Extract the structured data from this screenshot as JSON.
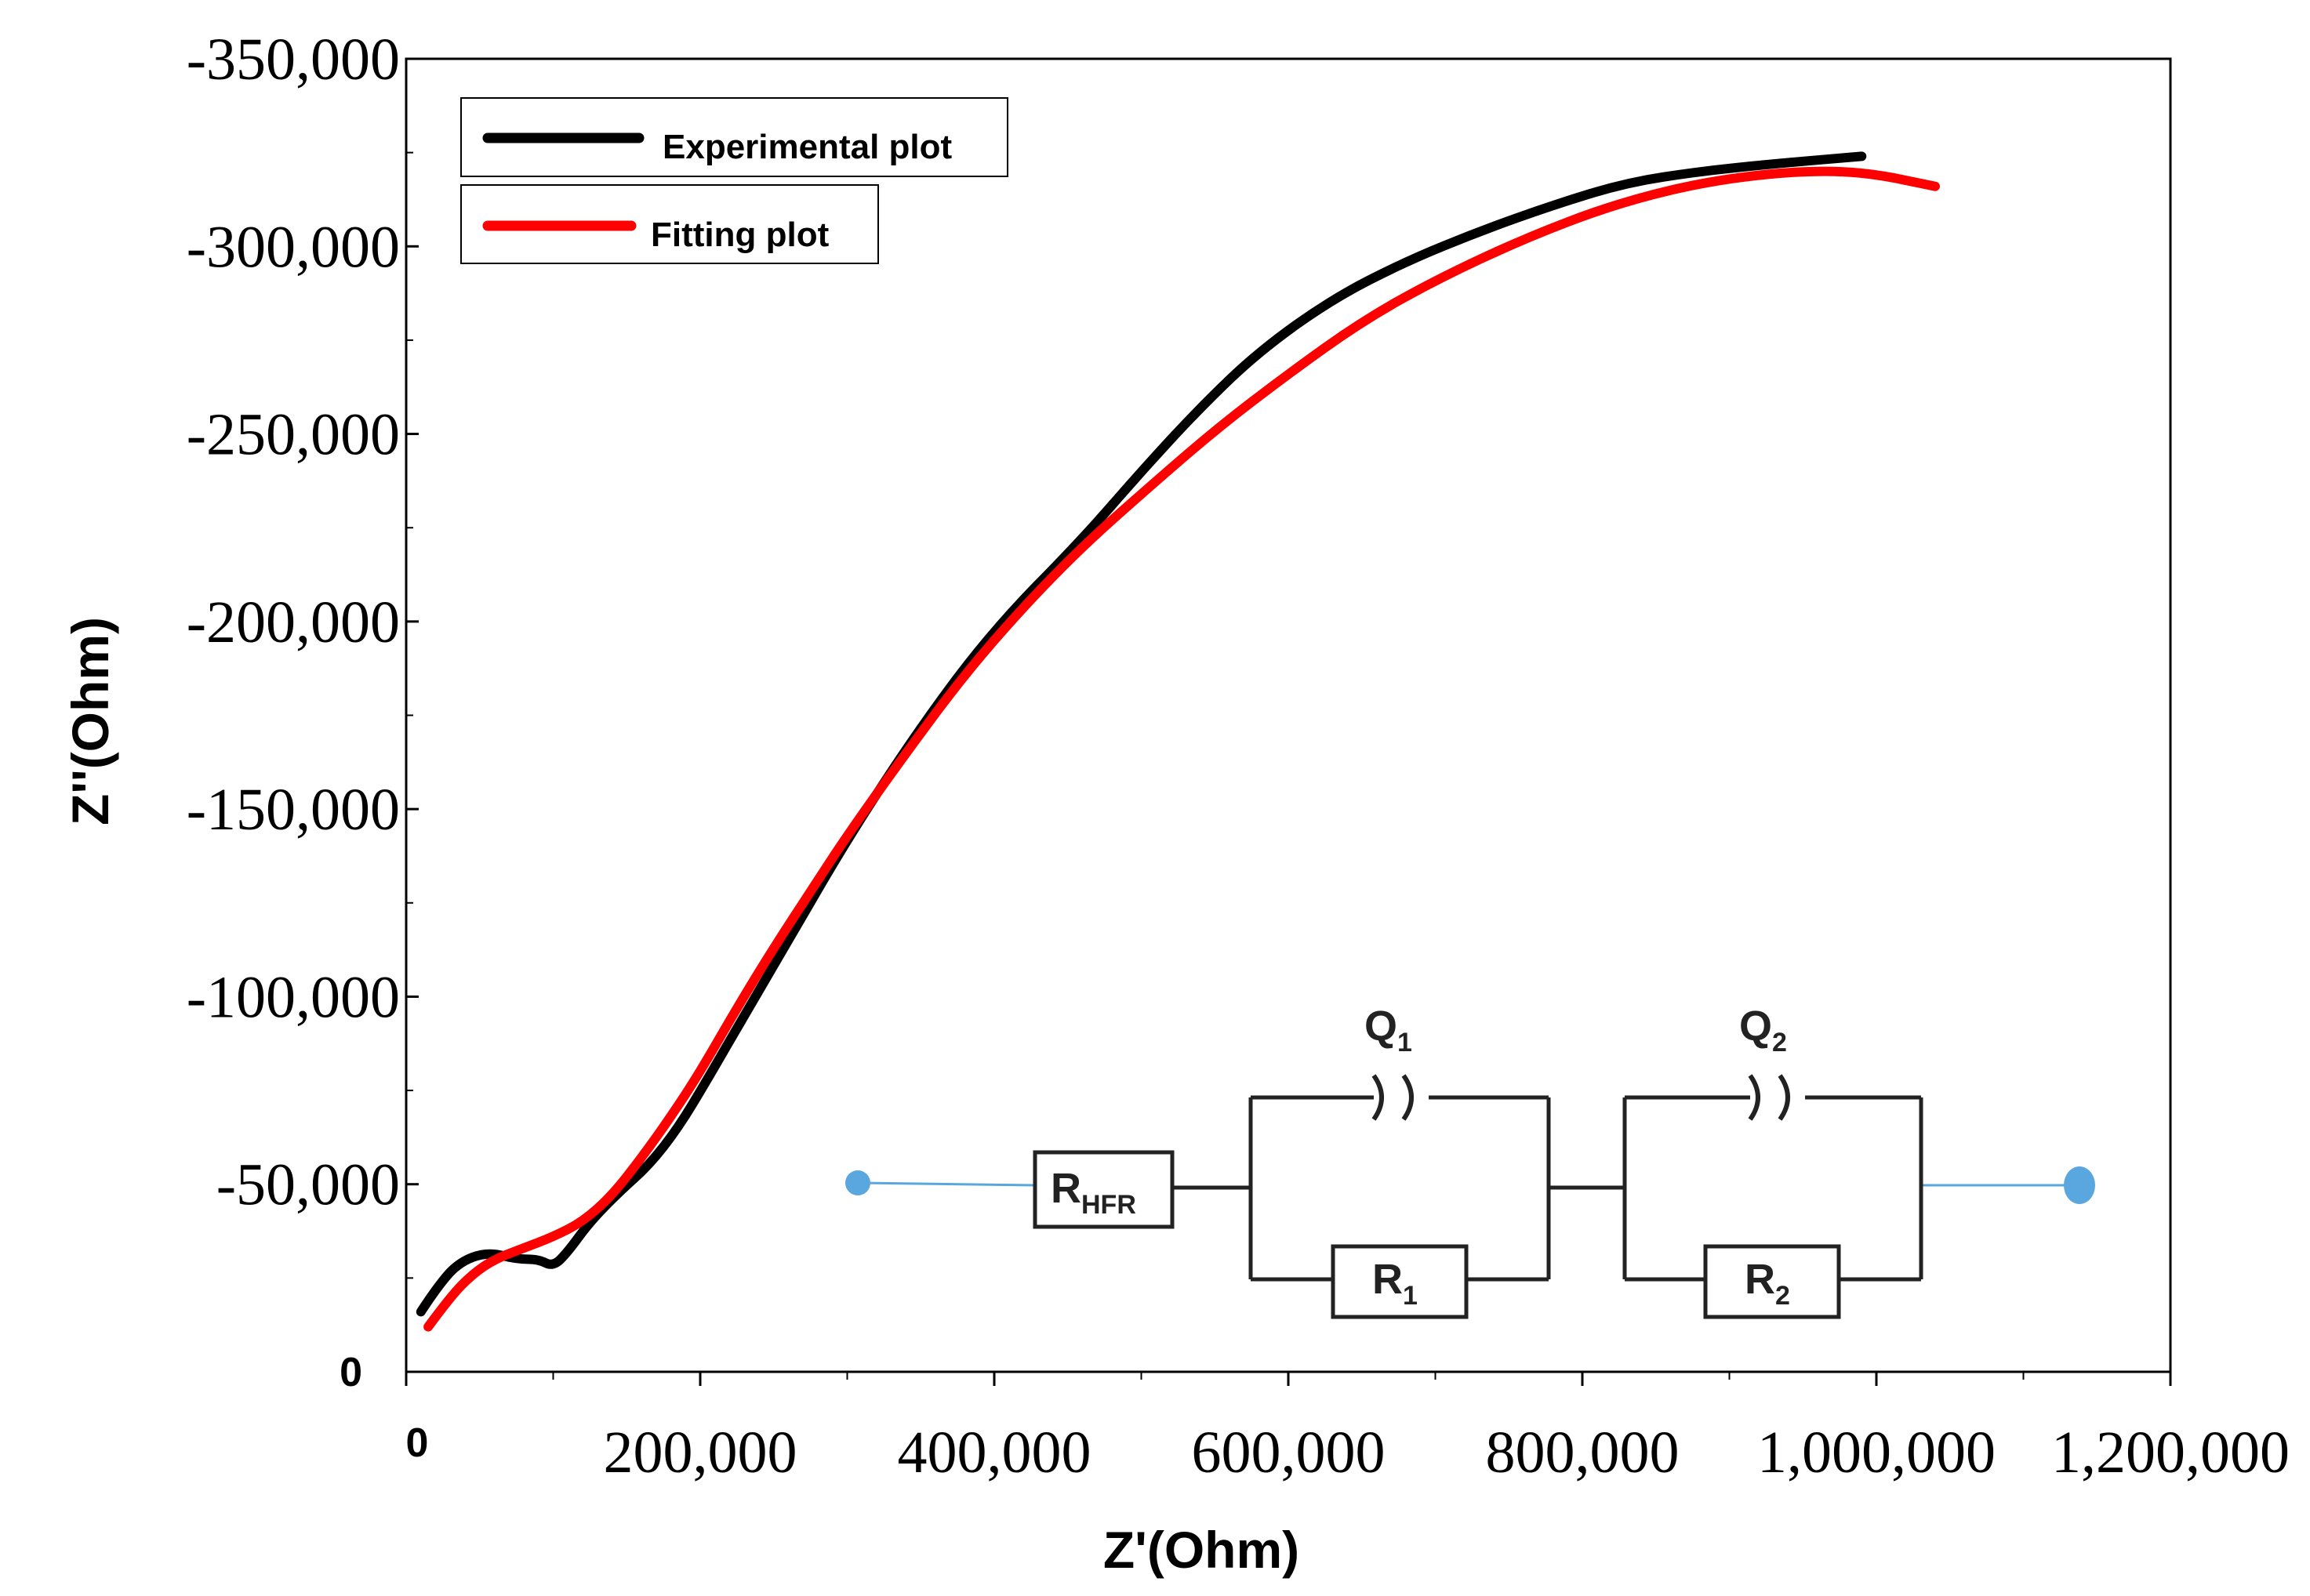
{
  "chart_data": {
    "type": "line",
    "title": "",
    "xlabel": "Z'(Ohm)",
    "ylabel": "Z''(Ohm)",
    "xlim": [
      0,
      1200000
    ],
    "ylim": [
      0,
      350000
    ],
    "x_ticks": [
      {
        "value": 0,
        "label": "0"
      },
      {
        "value": 200000,
        "label": "200,000"
      },
      {
        "value": 400000,
        "label": "400,000"
      },
      {
        "value": 600000,
        "label": "600,000"
      },
      {
        "value": 800000,
        "label": "800,000"
      },
      {
        "value": 1000000,
        "label": "1,000,000"
      },
      {
        "value": 1200000,
        "label": "1,200,000"
      }
    ],
    "y_ticks": [
      {
        "value": 0,
        "label": "0"
      },
      {
        "value": 50000,
        "label": "-50,000"
      },
      {
        "value": 100000,
        "label": "-100,000"
      },
      {
        "value": 150000,
        "label": "-150,000"
      },
      {
        "value": 200000,
        "label": "-200,000"
      },
      {
        "value": 250000,
        "label": "-250,000"
      },
      {
        "value": 300000,
        "label": "-300,000"
      },
      {
        "value": 350000,
        "label": "-350,000"
      }
    ],
    "legend_position": "top-left",
    "series": [
      {
        "name": "Experimental plot",
        "color": "#000000",
        "x": [
          10000,
          20000,
          35000,
          55000,
          75000,
          90000,
          100000,
          110000,
          125000,
          145000,
          165000,
          185000,
          205000,
          230000,
          260000,
          300000,
          350000,
          400000,
          460000,
          500000,
          540000,
          580000,
          630000,
          680000,
          730000,
          780000,
          830000,
          880000,
          930000,
          990000
        ],
        "y": [
          16000,
          22000,
          29000,
          32000,
          30000,
          30000,
          28000,
          32000,
          40000,
          48000,
          55000,
          65000,
          78000,
          95000,
          115000,
          142000,
          172000,
          198000,
          222000,
          240000,
          257000,
          272000,
          286000,
          296000,
          304000,
          311000,
          317000,
          320000,
          322000,
          324000
        ]
      },
      {
        "name": "Fitting plot",
        "color": "#ff0000",
        "x": [
          15000,
          30000,
          45000,
          60000,
          80000,
          100000,
          120000,
          140000,
          160000,
          180000,
          200000,
          225000,
          250000,
          275000,
          300000,
          340000,
          380000,
          420000,
          460000,
          500000,
          550000,
          600000,
          650000,
          700000,
          760000,
          820000,
          880000,
          940000,
          990000,
          1040000
        ],
        "y": [
          12000,
          20000,
          26000,
          30000,
          33000,
          36000,
          40000,
          47000,
          57000,
          68000,
          80000,
          97000,
          113000,
          128000,
          143000,
          165000,
          186000,
          204000,
          220000,
          234000,
          251000,
          266000,
          280000,
          291000,
          302000,
          311000,
          317000,
          320000,
          320000,
          316000
        ]
      }
    ],
    "inset": {
      "type": "equivalent circuit",
      "elements": [
        {
          "main": "R",
          "sub": "HFR"
        },
        {
          "main": "Q",
          "sub": "1"
        },
        {
          "main": "R",
          "sub": "1"
        },
        {
          "main": "Q",
          "sub": "2"
        },
        {
          "main": "R",
          "sub": "2"
        }
      ],
      "wire_color": "#5aa7e0",
      "line_color": "#222222"
    }
  }
}
